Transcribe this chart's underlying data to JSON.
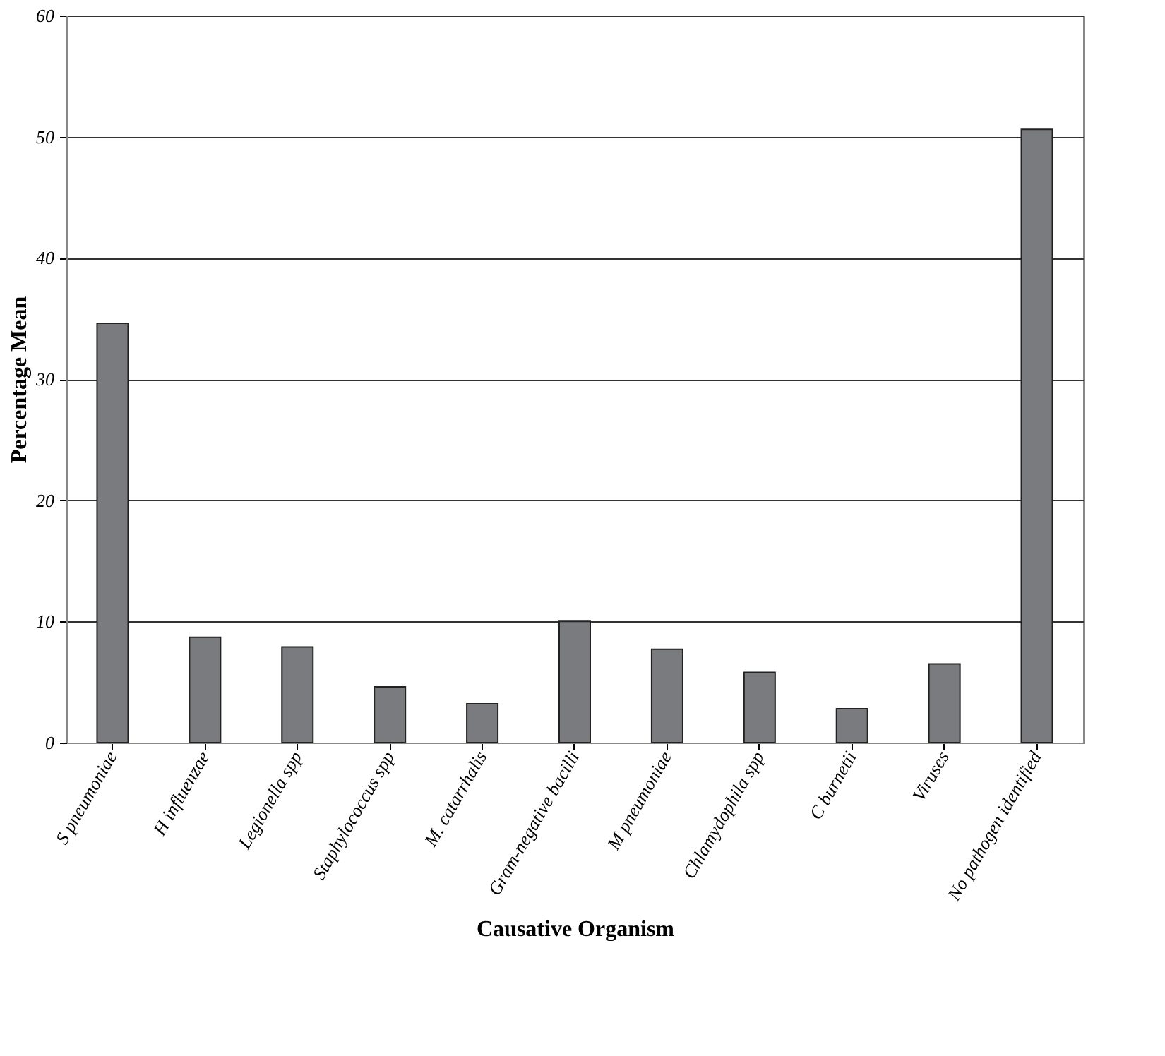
{
  "chart_data": {
    "type": "bar",
    "xlabel": "Causative Organism",
    "ylabel": "Percentage  Mean",
    "categories": [
      "S pneumoniae",
      "H influenzae",
      "Legionella spp",
      "Staphylococcus spp",
      "M. catarrhalis",
      "Gram-negative bacilli",
      "M pneumoniae",
      "Chlamydophila spp",
      "C burnetii",
      "Viruses",
      "No pathogen identified"
    ],
    "values": [
      34.6,
      8.7,
      7.9,
      4.6,
      3.2,
      10.0,
      7.7,
      5.8,
      2.8,
      6.5,
      50.6
    ],
    "color": "#7a7b7e",
    "ylim": [
      0,
      60
    ],
    "yticks": [
      0,
      10,
      20,
      30,
      40,
      50,
      60
    ],
    "grid": "y"
  }
}
